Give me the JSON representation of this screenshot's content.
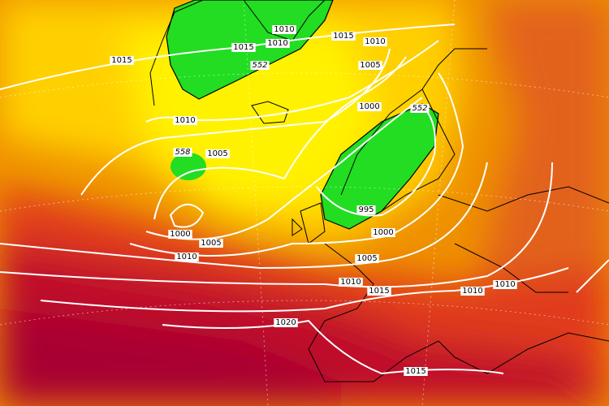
{
  "isobar_labels": [
    "1010",
    "1015",
    "1010",
    "552",
    "1015",
    "1010",
    "1005",
    "1015",
    "1010",
    "1000",
    "552",
    "558",
    "1005",
    "995",
    "1000",
    "1005",
    "1000",
    "1010",
    "1005",
    "1010",
    "1015",
    "1010",
    "1010",
    "1020",
    "1015"
  ]
}
